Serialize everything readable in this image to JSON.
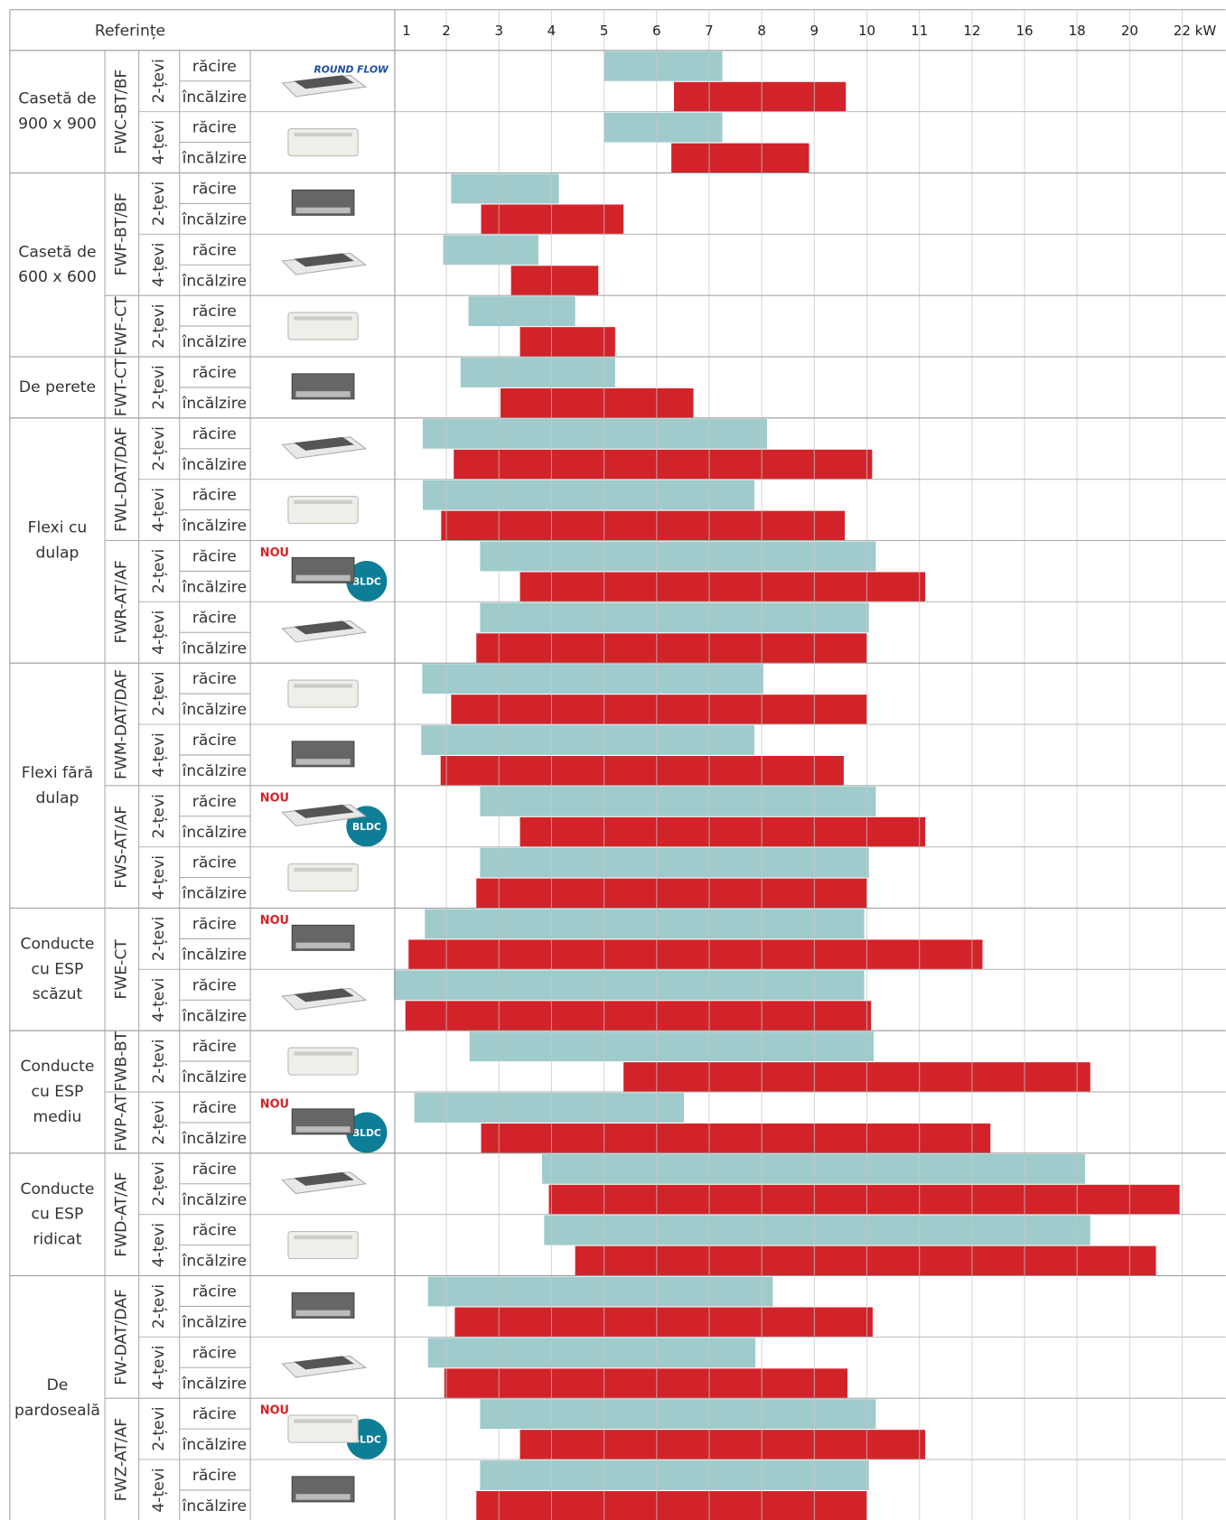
{
  "chart_data": {
    "type": "range-bar",
    "header": "Referințe",
    "xticks": [
      1,
      2,
      3,
      4,
      5,
      6,
      7,
      8,
      9,
      10,
      11,
      12,
      16,
      18,
      20,
      {
        "value": 22,
        "label": "22 kW"
      }
    ],
    "xlim": [
      1,
      22
    ],
    "grid": true,
    "groups": [
      {
        "name_lines": [
          "Casetă de",
          "900 x 900"
        ],
        "models": [
          {
            "name": "FWC-BT/BF",
            "logo": "ROUND FLOW",
            "pipes": [
              {
                "name": "2-țevi",
                "rows": [
                  {
                    "label": "răcire",
                    "start": 5.0,
                    "end": 7.25,
                    "color": "#9fcbcc"
                  },
                  {
                    "label": "încălzire",
                    "start": 6.33,
                    "end": 9.6,
                    "color": "#d2232a"
                  }
                ]
              },
              {
                "name": "4-țevi",
                "rows": [
                  {
                    "label": "răcire",
                    "start": 5.0,
                    "end": 7.25,
                    "color": "#9fcbcc"
                  },
                  {
                    "label": "încălzire",
                    "start": 6.28,
                    "end": 8.9,
                    "color": "#d2232a"
                  }
                ]
              }
            ]
          }
        ]
      },
      {
        "name_lines": [
          "Casetă de",
          "600 x 600"
        ],
        "models": [
          {
            "name": "FWF-BT/BF",
            "pipes": [
              {
                "name": "2-țevi",
                "rows": [
                  {
                    "label": "răcire",
                    "start": 2.09,
                    "end": 4.14,
                    "color": "#9fcbcc"
                  },
                  {
                    "label": "încălzire",
                    "start": 2.66,
                    "end": 5.37,
                    "color": "#d2232a"
                  }
                ]
              },
              {
                "name": "4-țevi",
                "rows": [
                  {
                    "label": "răcire",
                    "start": 1.94,
                    "end": 3.75,
                    "color": "#9fcbcc"
                  },
                  {
                    "label": "încălzire",
                    "start": 3.23,
                    "end": 4.89,
                    "color": "#d2232a"
                  }
                ]
              }
            ]
          },
          {
            "name": "FWF-CT",
            "pipes": [
              {
                "name": "2-țevi",
                "rows": [
                  {
                    "label": "răcire",
                    "start": 2.42,
                    "end": 4.45,
                    "color": "#9fcbcc"
                  },
                  {
                    "label": "încălzire",
                    "start": 3.4,
                    "end": 5.21,
                    "color": "#d2232a"
                  }
                ]
              }
            ]
          }
        ]
      },
      {
        "name_lines": [
          "De perete"
        ],
        "models": [
          {
            "name": "FWT-CT",
            "pipes": [
              {
                "name": "2-țevi",
                "rows": [
                  {
                    "label": "răcire",
                    "start": 2.27,
                    "end": 5.21,
                    "color": "#9fcbcc"
                  },
                  {
                    "label": "încălzire",
                    "start": 3.03,
                    "end": 6.7,
                    "color": "#d2232a"
                  }
                ]
              }
            ]
          }
        ]
      },
      {
        "name_lines": [
          "Flexi cu",
          "dulap"
        ],
        "models": [
          {
            "name": "FWL-DAT/DAF",
            "pipes": [
              {
                "name": "2-țevi",
                "rows": [
                  {
                    "label": "răcire",
                    "start": 1.55,
                    "end": 8.1,
                    "color": "#9fcbcc"
                  },
                  {
                    "label": "încălzire",
                    "start": 2.14,
                    "end": 10.1,
                    "color": "#d2232a"
                  }
                ]
              },
              {
                "name": "4-țevi",
                "rows": [
                  {
                    "label": "răcire",
                    "start": 1.55,
                    "end": 7.86,
                    "color": "#9fcbcc"
                  },
                  {
                    "label": "încălzire",
                    "start": 1.9,
                    "end": 9.58,
                    "color": "#d2232a"
                  }
                ]
              }
            ]
          },
          {
            "name": "FWR-AT/AF",
            "badges": [
              "NOU",
              "BLDC"
            ],
            "pipes": [
              {
                "name": "2-țevi",
                "rows": [
                  {
                    "label": "răcire",
                    "start": 2.64,
                    "end": 10.17,
                    "color": "#9fcbcc"
                  },
                  {
                    "label": "încălzire",
                    "start": 3.4,
                    "end": 11.11,
                    "color": "#d2232a"
                  }
                ]
              },
              {
                "name": "4-țevi",
                "rows": [
                  {
                    "label": "răcire",
                    "start": 2.64,
                    "end": 10.04,
                    "color": "#9fcbcc"
                  },
                  {
                    "label": "încălzire",
                    "start": 2.57,
                    "end": 10.0,
                    "color": "#d2232a"
                  }
                ]
              }
            ]
          }
        ]
      },
      {
        "name_lines": [
          "Flexi fără",
          "dulap"
        ],
        "models": [
          {
            "name": "FWM-DAT/DAF",
            "pipes": [
              {
                "name": "2-țevi",
                "rows": [
                  {
                    "label": "răcire",
                    "start": 1.54,
                    "end": 8.03,
                    "color": "#9fcbcc"
                  },
                  {
                    "label": "încălzire",
                    "start": 2.09,
                    "end": 10.0,
                    "color": "#d2232a"
                  }
                ]
              },
              {
                "name": "4-țevi",
                "rows": [
                  {
                    "label": "răcire",
                    "start": 1.52,
                    "end": 7.86,
                    "color": "#9fcbcc"
                  },
                  {
                    "label": "încălzire",
                    "start": 1.89,
                    "end": 9.56,
                    "color": "#d2232a"
                  }
                ]
              }
            ]
          },
          {
            "name": "FWS-AT/AF",
            "badges": [
              "NOU",
              "BLDC"
            ],
            "pipes": [
              {
                "name": "2-țevi",
                "rows": [
                  {
                    "label": "răcire",
                    "start": 2.64,
                    "end": 10.17,
                    "color": "#9fcbcc"
                  },
                  {
                    "label": "încălzire",
                    "start": 3.4,
                    "end": 11.11,
                    "color": "#d2232a"
                  }
                ]
              },
              {
                "name": "4-țevi",
                "rows": [
                  {
                    "label": "răcire",
                    "start": 2.64,
                    "end": 10.04,
                    "color": "#9fcbcc"
                  },
                  {
                    "label": "încălzire",
                    "start": 2.57,
                    "end": 10.0,
                    "color": "#d2232a"
                  }
                ]
              }
            ]
          }
        ]
      },
      {
        "name_lines": [
          "Conducte",
          "cu ESP",
          "scăzut"
        ],
        "models": [
          {
            "name": "FWE-CT",
            "badges": [
              "NOU"
            ],
            "pipes": [
              {
                "name": "2-țevi",
                "rows": [
                  {
                    "label": "răcire",
                    "start": 1.59,
                    "end": 9.95,
                    "color": "#9fcbcc"
                  },
                  {
                    "label": "încălzire",
                    "start": 1.28,
                    "end": 12.8,
                    "color": "#d2232a"
                  }
                ]
              },
              {
                "name": "4-țevi",
                "rows": [
                  {
                    "label": "răcire",
                    "start": 1.0,
                    "end": 9.95,
                    "color": "#9fcbcc"
                  },
                  {
                    "label": "încălzire",
                    "start": 1.22,
                    "end": 10.08,
                    "color": "#d2232a"
                  }
                ]
              }
            ]
          }
        ]
      },
      {
        "name_lines": [
          "Conducte",
          "cu ESP",
          "mediu"
        ],
        "models": [
          {
            "name": "FWB-BT",
            "pipes": [
              {
                "name": "2-țevi",
                "rows": [
                  {
                    "label": "răcire",
                    "start": 2.44,
                    "end": 10.13,
                    "color": "#9fcbcc"
                  },
                  {
                    "label": "încălzire",
                    "start": 5.37,
                    "end": 18.5,
                    "color": "#d2232a"
                  }
                ]
              }
            ]
          },
          {
            "name": "FWP-AT",
            "badges": [
              "NOU",
              "BLDC"
            ],
            "pipes": [
              {
                "name": "2-țevi",
                "rows": [
                  {
                    "label": "răcire",
                    "start": 1.39,
                    "end": 6.52,
                    "color": "#9fcbcc"
                  },
                  {
                    "label": "încălzire",
                    "start": 2.66,
                    "end": 13.4,
                    "color": "#d2232a"
                  }
                ]
              }
            ]
          }
        ]
      },
      {
        "name_lines": [
          "Conducte",
          "cu ESP",
          "ridicat"
        ],
        "models": [
          {
            "name": "FWD-AT/AF",
            "pipes": [
              {
                "name": "2-țevi",
                "rows": [
                  {
                    "label": "răcire",
                    "start": 3.82,
                    "end": 18.3,
                    "color": "#9fcbcc"
                  },
                  {
                    "label": "încălzire",
                    "start": 3.95,
                    "end": 21.9,
                    "color": "#d2232a"
                  }
                ]
              },
              {
                "name": "4-țevi",
                "rows": [
                  {
                    "label": "răcire",
                    "start": 3.86,
                    "end": 18.5,
                    "color": "#9fcbcc"
                  },
                  {
                    "label": "încălzire",
                    "start": 4.45,
                    "end": 21.0,
                    "color": "#d2232a"
                  }
                ]
              }
            ]
          }
        ]
      },
      {
        "name_lines": [
          "De",
          "pardoseală"
        ],
        "models": [
          {
            "name": "FW-DAT/DAF",
            "pipes": [
              {
                "name": "2-țevi",
                "rows": [
                  {
                    "label": "răcire",
                    "start": 1.65,
                    "end": 8.21,
                    "color": "#9fcbcc"
                  },
                  {
                    "label": "încălzire",
                    "start": 2.16,
                    "end": 10.11,
                    "color": "#d2232a"
                  }
                ]
              },
              {
                "name": "4-țevi",
                "rows": [
                  {
                    "label": "răcire",
                    "start": 1.65,
                    "end": 7.88,
                    "color": "#9fcbcc"
                  },
                  {
                    "label": "încălzire",
                    "start": 1.96,
                    "end": 9.63,
                    "color": "#d2232a"
                  }
                ]
              }
            ]
          },
          {
            "name": "FWZ-AT/AF",
            "badges": [
              "NOU",
              "BLDC"
            ],
            "pipes": [
              {
                "name": "2-țevi",
                "rows": [
                  {
                    "label": "răcire",
                    "start": 2.64,
                    "end": 10.17,
                    "color": "#9fcbcc"
                  },
                  {
                    "label": "încălzire",
                    "start": 3.4,
                    "end": 11.11,
                    "color": "#d2232a"
                  }
                ]
              },
              {
                "name": "4-țevi",
                "rows": [
                  {
                    "label": "răcire",
                    "start": 2.64,
                    "end": 10.04,
                    "color": "#9fcbcc"
                  },
                  {
                    "label": "încălzire",
                    "start": 2.57,
                    "end": 10.0,
                    "color": "#d2232a"
                  }
                ]
              }
            ]
          }
        ]
      }
    ]
  }
}
